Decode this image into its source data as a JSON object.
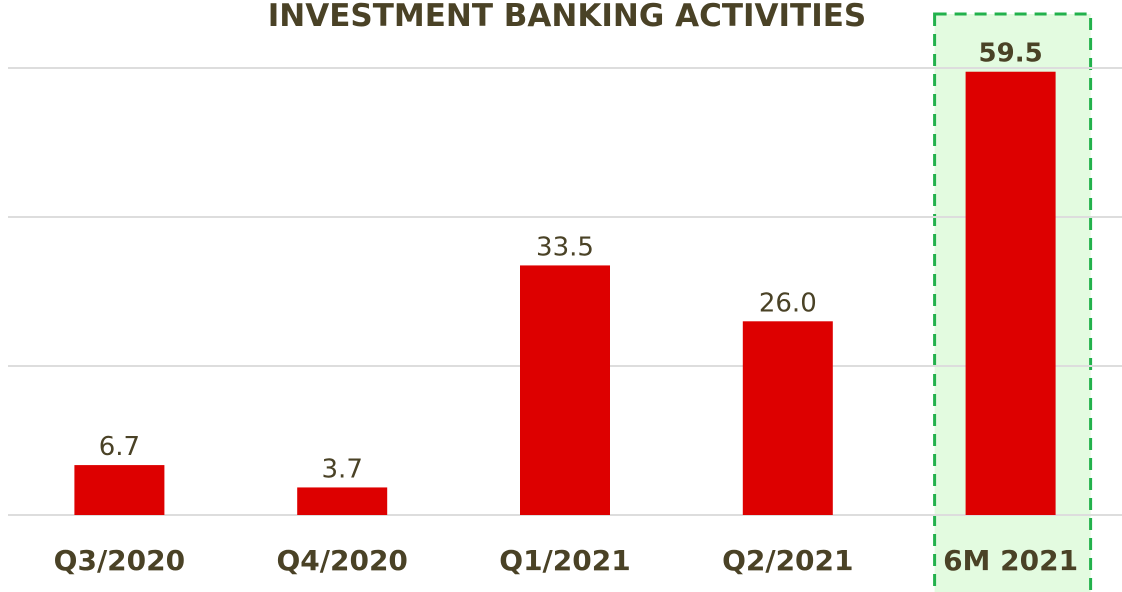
{
  "chart_data": {
    "type": "bar",
    "title": "INVESTMENT BANKING ACTIVITIES",
    "categories": [
      "Q3/2020",
      "Q4/2020",
      "Q1/2021",
      "Q2/2021",
      "6M 2021"
    ],
    "values": [
      6.7,
      3.7,
      33.5,
      26,
      59.5
    ],
    "value_labels": [
      "6.7",
      "3.7",
      "33.5",
      "26.0",
      "59.5"
    ],
    "color": "#dd0000",
    "ylim": [
      0,
      60
    ],
    "yticks": [
      0,
      20,
      40,
      60
    ],
    "grid": true
  }
}
